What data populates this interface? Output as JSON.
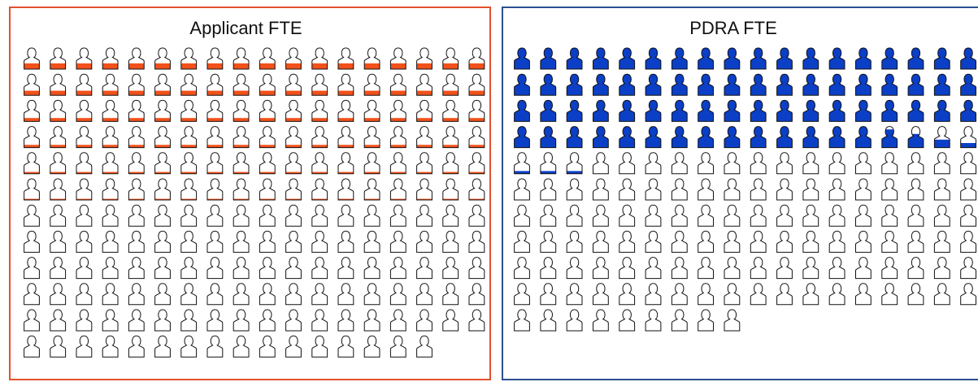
{
  "colors": {
    "applicant": "#f2511b",
    "pdra": "#0b3fc6",
    "outline": "#111111"
  },
  "chart_data": [
    {
      "type": "isotype",
      "title": "Applicant FTE",
      "icon": "person-icon",
      "columns": 18,
      "rows_per_column": [
        12,
        12,
        12,
        12,
        12,
        12,
        12,
        12,
        12,
        12,
        12,
        12,
        12,
        12,
        12,
        12,
        11,
        11
      ],
      "row_fill_fractions": [
        0.25,
        0.2,
        0.15,
        0.12,
        0.08,
        0.05,
        0,
        0,
        0,
        0,
        0,
        0
      ]
    },
    {
      "type": "isotype",
      "title": "PDRA FTE",
      "icon": "person-icon",
      "columns": 18,
      "rows_per_column": [
        11,
        11,
        11,
        11,
        11,
        11,
        11,
        11,
        11,
        10,
        10,
        10,
        10,
        10,
        10,
        10,
        10,
        10
      ],
      "fills": [
        [
          1,
          1,
          1,
          1,
          0.12
        ],
        [
          1,
          1,
          1,
          1,
          0.12
        ],
        [
          1,
          1,
          1,
          1,
          0.12
        ],
        [
          1,
          1,
          1,
          1,
          0
        ],
        [
          1,
          1,
          1,
          1,
          0
        ],
        [
          1,
          1,
          1,
          1,
          0
        ],
        [
          1,
          1,
          1,
          1,
          0
        ],
        [
          1,
          1,
          1,
          1,
          0
        ],
        [
          1,
          1,
          1,
          1,
          0
        ],
        [
          1,
          1,
          1,
          1,
          0
        ],
        [
          1,
          1,
          1,
          1,
          0
        ],
        [
          1,
          1,
          1,
          1,
          0
        ],
        [
          1,
          1,
          1,
          1,
          0
        ],
        [
          1,
          1,
          1,
          1,
          0
        ],
        [
          1,
          1,
          1,
          0.8,
          0
        ],
        [
          1,
          1,
          1,
          0.6,
          0
        ],
        [
          1,
          1,
          1,
          0.35,
          0
        ],
        [
          1,
          1,
          1,
          0.2,
          0
        ]
      ]
    }
  ]
}
